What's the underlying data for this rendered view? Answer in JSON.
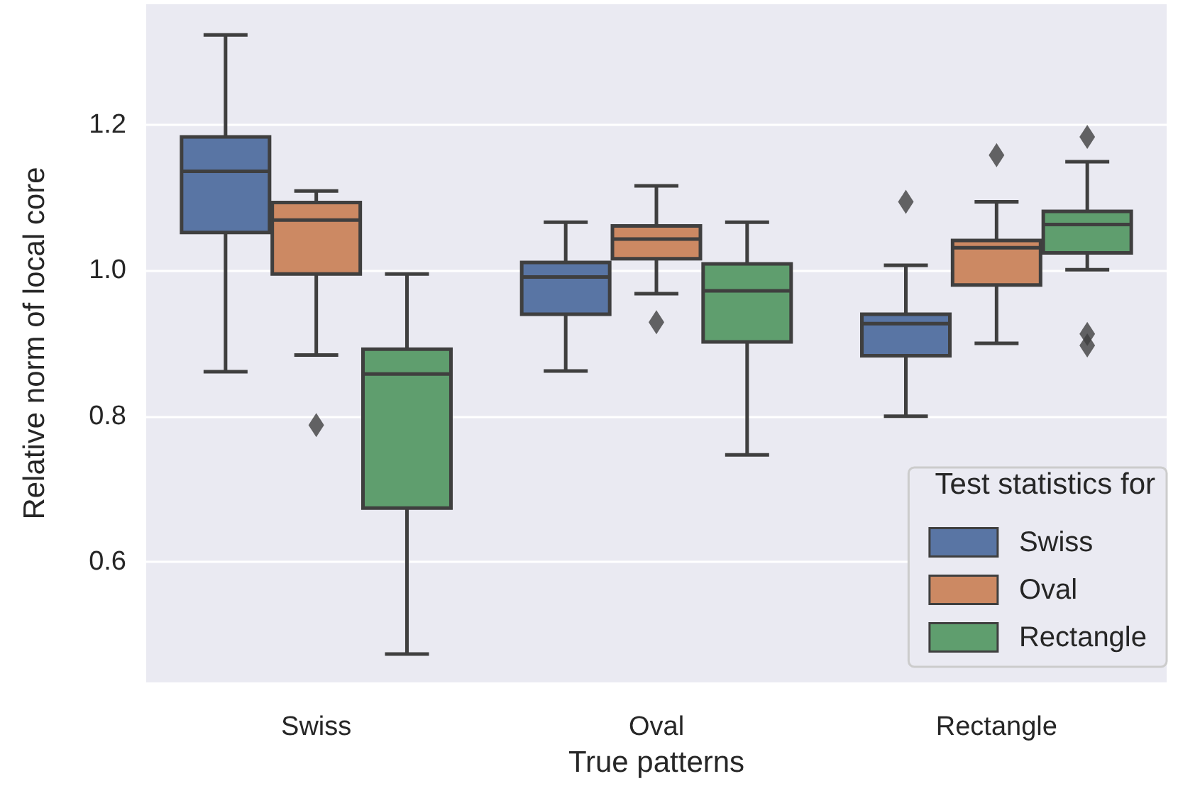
{
  "chart_data": {
    "type": "box",
    "xlabel": "True patterns",
    "ylabel": "Relative norm of local core",
    "legend_title": "Test statistics for",
    "categories": [
      "Swiss",
      "Oval",
      "Rectangle"
    ],
    "ylim": [
      0.435,
      1.365
    ],
    "yticks": [
      {
        "value": 0.6,
        "label": "0.6"
      },
      {
        "value": 0.8,
        "label": "0.8"
      },
      {
        "value": 1.0,
        "label": "1.0"
      },
      {
        "value": 1.2,
        "label": "1.2"
      }
    ],
    "grid": "y",
    "legend": "bottom right",
    "series": [
      {
        "name": "Swiss",
        "color": "#5975a4",
        "boxes": [
          {
            "low": 0.861,
            "q1": 1.052,
            "median": 1.136,
            "q3": 1.183,
            "high": 1.323
          },
          {
            "low": 0.862,
            "q1": 0.94,
            "median": 0.991,
            "q3": 1.011,
            "high": 1.066
          },
          {
            "low": 0.8,
            "q1": 0.883,
            "median": 0.927,
            "q3": 0.94,
            "high": 1.007,
            "outliers": [
              1.094
            ]
          }
        ]
      },
      {
        "name": "Oval",
        "color": "#cc8963",
        "boxes": [
          {
            "low": 0.884,
            "q1": 0.995,
            "median": 1.069,
            "q3": 1.093,
            "high": 1.109,
            "outliers": [
              0.788
            ]
          },
          {
            "low": 0.968,
            "q1": 1.016,
            "median": 1.043,
            "q3": 1.061,
            "high": 1.116,
            "outliers": [
              0.929
            ]
          },
          {
            "low": 0.9,
            "q1": 0.98,
            "median": 1.031,
            "q3": 1.041,
            "high": 1.094,
            "outliers": [
              1.158
            ]
          }
        ]
      },
      {
        "name": "Rectangle",
        "color": "#5f9e6e",
        "boxes": [
          {
            "low": 0.474,
            "q1": 0.674,
            "median": 0.858,
            "q3": 0.892,
            "high": 0.995
          },
          {
            "low": 0.747,
            "q1": 0.902,
            "median": 0.972,
            "q3": 1.009,
            "high": 1.066
          },
          {
            "low": 1.001,
            "q1": 1.024,
            "median": 1.063,
            "q3": 1.081,
            "high": 1.149,
            "outliers": [
              1.183,
              0.913,
              0.897
            ]
          }
        ]
      }
    ]
  }
}
